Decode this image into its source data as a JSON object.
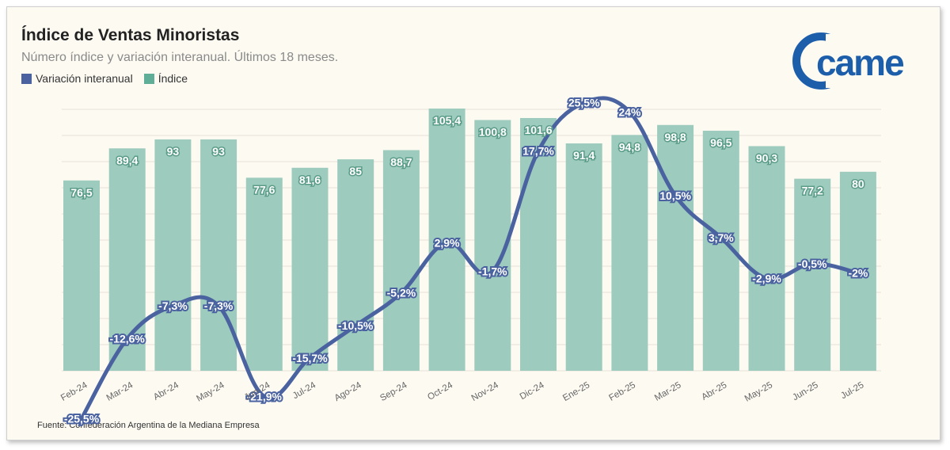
{
  "header": {
    "title": "Índice de Ventas Minoristas",
    "subtitle": "Número índice y variación interanual. Últimos 18 meses."
  },
  "legend": {
    "line_label": "Variación interanual",
    "bar_label": "Índice"
  },
  "source": "Fuente: Confederación Argentina de la Mediana Empresa",
  "logo": {
    "text": "came"
  },
  "colors": {
    "bar": "#9dcbbd",
    "line": "#4a63a0",
    "grid": "#e6e3da",
    "logo": "#1d5eab"
  },
  "chart_data": {
    "type": "bar",
    "categories": [
      "Feb-24",
      "Mar-24",
      "Abr-24",
      "May-24",
      "Jun-24",
      "Jul-24",
      "Ago-24",
      "Sep-24",
      "Oct-24",
      "Nov-24",
      "Dic-24",
      "Ene-25",
      "Feb-25",
      "Mar-25",
      "Abr-25",
      "May-25",
      "Jun-25",
      "Jul-25"
    ],
    "series": [
      {
        "name": "Índice",
        "type": "bar",
        "values": [
          76.5,
          89.4,
          93,
          93,
          77.6,
          81.6,
          85,
          88.7,
          105.4,
          100.8,
          101.6,
          91.4,
          94.8,
          98.8,
          96.5,
          90.3,
          77.2,
          80
        ],
        "labels": [
          "76,5",
          "89,4",
          "93",
          "93",
          "77,6",
          "81,6",
          "85",
          "88,7",
          "105,4",
          "100,8",
          "101,6",
          "91,4",
          "94,8",
          "98,8",
          "96,5",
          "90,3",
          "77,2",
          "80"
        ]
      },
      {
        "name": "Variación interanual",
        "type": "line",
        "values": [
          -25.5,
          -12.6,
          -7.3,
          -7.3,
          -21.9,
          -15.7,
          -10.5,
          -5.2,
          2.9,
          -1.7,
          17.7,
          25.5,
          24,
          10.5,
          3.7,
          -2.9,
          -0.5,
          -2
        ],
        "labels": [
          "-25,5%",
          "-12,6%",
          "-7,3%",
          "-7,3%",
          "-21,9%",
          "-15,7%",
          "-10,5%",
          "-5,2%",
          "2,9%",
          "-1,7%",
          "17,7%",
          "25,5%",
          "24%",
          "10,5%",
          "3,7%",
          "-2,9%",
          "-0,5%",
          "-2%"
        ]
      }
    ],
    "ylim_bar": [
      0,
      110
    ],
    "ylim_line": [
      -30,
      30
    ],
    "grid": true,
    "legend_position": "top-left"
  }
}
